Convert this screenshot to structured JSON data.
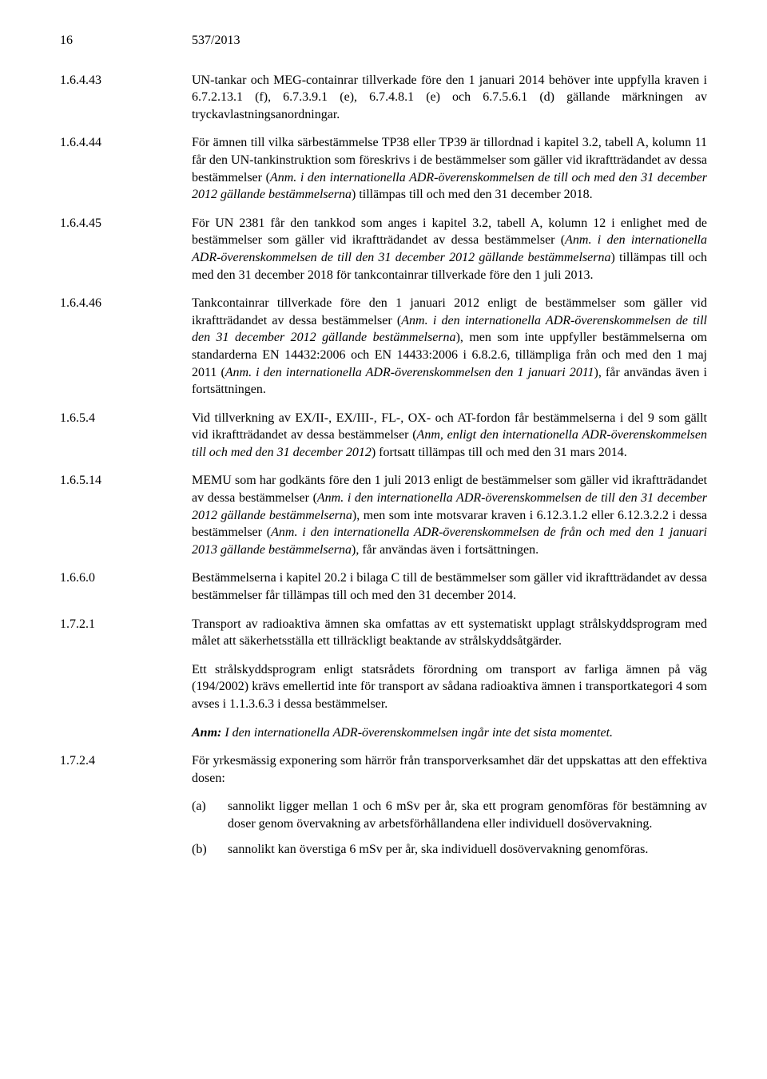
{
  "header": {
    "page_number": "16",
    "doc_number": "537/2013"
  },
  "sections": [
    {
      "num": "1.6.4.43",
      "paras": [
        {
          "text": "UN-tankar och MEG-containrar tillverkade före den 1 januari 2014 behöver inte uppfylla kraven i 6.7.2.13.1 (f), 6.7.3.9.1 (e), 6.7.4.8.1 (e) och 6.7.5.6.1 (d) gällande märkningen av tryckavlastningsanordningar."
        }
      ]
    },
    {
      "num": "1.6.4.44",
      "paras": [
        {
          "html": "För ämnen till vilka särbestämmelse TP38 eller TP39 är tillordnad i kapitel 3.2, tabell A, kolumn 11 får den UN-tankinstruktion som föreskrivs i de bestämmelser som gäller vid ikraftträdandet av dessa bestämmelser (<span class=\"italic\">Anm. i den internationella ADR-överenskommelsen de till och med den 31 december 2012 gällande bestämmelserna</span>) tillämpas till och med den 31 december 2018."
        }
      ]
    },
    {
      "num": "1.6.4.45",
      "paras": [
        {
          "html": "För UN 2381 får den tankkod som anges i kapitel 3.2, tabell A, kolumn 12 i enlighet med de bestämmelser som gäller vid ikraftträdandet av dessa bestämmelser (<span class=\"italic\">Anm. i den internationella ADR-överenskommelsen de till den 31 december 2012 gällande bestämmelserna</span>) tillämpas till och med den 31 december 2018 för tankcontainrar tillverkade före den 1 juli 2013."
        }
      ]
    },
    {
      "num": "1.6.4.46",
      "paras": [
        {
          "html": "Tankcontainrar tillverkade före den 1 januari 2012 enligt de bestämmelser som gäller vid ikraftträdandet av dessa bestämmelser (<span class=\"italic\">Anm. i den internationella ADR-överenskommelsen de till den 31 december 2012 gällande bestämmelserna</span>), men som inte uppfyller bestämmelserna om standarderna EN 14432:2006 och EN 14433:2006 i 6.8.2.6, tillämpliga från och med den 1 maj 2011 (<span class=\"italic\">Anm. i den internationella ADR-överenskommelsen den 1 januari 2011</span>), får användas även i fortsättningen."
        }
      ]
    },
    {
      "num": "1.6.5.4",
      "paras": [
        {
          "html": "Vid tillverkning av EX/II-, EX/III-, FL-, OX- och AT-fordon får bestämmelserna i del 9 som gällt vid ikraftträdandet av dessa bestämmelser (<span class=\"italic\">Anm, enligt den internationella ADR-överenskommelsen till och med den 31 december 2012</span>) fortsatt tillämpas till och med den 31 mars 2014."
        }
      ]
    },
    {
      "num": "1.6.5.14",
      "paras": [
        {
          "html": "MEMU som har godkänts före den 1 juli 2013 enligt de bestämmelser som gäller vid ikraftträdandet av dessa bestämmelser (<span class=\"italic\">Anm. i den internationella ADR-överenskommelsen de till den 31 december 2012 gällande bestämmelserna</span>), men som inte motsvarar kraven i 6.12.3.1.2 eller 6.12.3.2.2 i dessa bestämmelser (<span class=\"italic\">Anm. i den internationella ADR-överenskommelsen de från och med den 1 januari 2013 gällande bestämmelserna</span>), får användas även i fortsättningen."
        }
      ]
    },
    {
      "num": "1.6.6.0",
      "paras": [
        {
          "text": "Bestämmelserna i kapitel 20.2 i bilaga C till de bestämmelser som gäller vid ikraftträdandet av dessa bestämmelser får tillämpas till och med den 31 december 2014."
        }
      ]
    },
    {
      "num": "1.7.2.1",
      "paras": [
        {
          "text": "Transport av radioaktiva ämnen ska omfattas av ett systematiskt upplagt strålskyddsprogram med målet att säkerhetsställa ett tillräckligt beaktande av strålskyddsåtgärder."
        },
        {
          "text": "Ett strålskyddsprogram enligt statsrådets förordning om transport av farliga ämnen på väg (194/2002) krävs emellertid inte för transport av sådana radioaktiva ämnen i transportkategori 4 som avses i 1.1.3.6.3 i dessa bestämmelser."
        },
        {
          "html": "<span class=\"italic\"><b>Anm:</b> I den internationella ADR-överenskommelsen ingår inte det sista momentet.</span>"
        }
      ]
    },
    {
      "num": "1.7.2.4",
      "paras": [
        {
          "text": "För yrkesmässig exponering som härrör från transporverksamhet där det uppskattas att den effektiva dosen:"
        }
      ],
      "subitems": [
        {
          "label": "(a)",
          "text": "sannolikt ligger mellan 1 och 6 mSv per år, ska ett program genomföras för bestämning av doser genom övervakning av arbetsförhållandena eller individuell dosövervakning."
        },
        {
          "label": "(b)",
          "text": "sannolikt kan överstiga 6 mSv per år, ska individuell dosövervakning genomföras."
        }
      ]
    }
  ]
}
